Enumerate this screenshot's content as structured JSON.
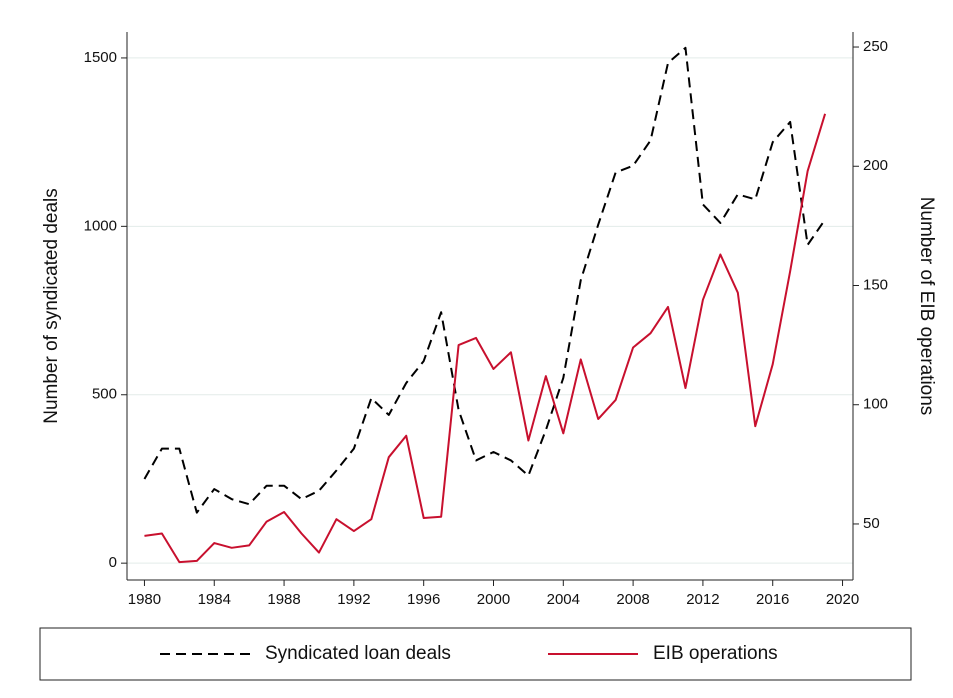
{
  "chart_data": {
    "type": "line",
    "y_label": "Number of syndicated deals",
    "y2_label": "Number of EIB operations",
    "x": [
      1980,
      1981,
      1982,
      1983,
      1984,
      1985,
      1986,
      1987,
      1988,
      1989,
      1990,
      1991,
      1992,
      1993,
      1994,
      1995,
      1996,
      1997,
      1998,
      1999,
      2000,
      2001,
      2002,
      2003,
      2004,
      2005,
      2006,
      2007,
      2008,
      2009,
      2010,
      2011,
      2012,
      2013,
      2014,
      2015,
      2016,
      2017,
      2018,
      2019
    ],
    "series": [
      {
        "name": "Syndicated loan deals",
        "color": "#000000",
        "dash": true,
        "values": [
          250,
          340,
          340,
          150,
          220,
          190,
          175,
          230,
          230,
          190,
          215,
          275,
          340,
          490,
          440,
          535,
          600,
          745,
          455,
          305,
          330,
          305,
          260,
          395,
          550,
          840,
          1005,
          1160,
          1180,
          1255,
          1485,
          1530,
          1065,
          1010,
          1095,
          1080,
          1250,
          1310,
          945,
          1020
        ]
      },
      {
        "name": "EIB operations",
        "color": "#c8102e",
        "axis": "y2",
        "values": [
          45,
          46,
          34,
          34.5,
          42,
          40,
          41,
          51,
          55,
          46,
          38,
          52,
          47,
          52,
          78,
          87,
          52.5,
          53,
          125,
          128,
          115,
          122,
          85,
          112,
          88,
          119,
          94,
          102,
          124,
          130,
          141,
          107,
          144,
          163,
          147,
          91,
          117,
          156,
          198,
          222
        ]
      }
    ],
    "xlim": [
      1979,
      2020.6
    ],
    "xticks": [
      1980,
      1984,
      1988,
      1992,
      1996,
      2000,
      2004,
      2008,
      2012,
      2016,
      2020
    ],
    "ylim": [
      -50,
      1577
    ],
    "yticks": [
      0,
      500,
      1000,
      1500
    ],
    "y2lim": [
      26.5,
      256.3
    ],
    "y2ticks": [
      50,
      100,
      150,
      200,
      250
    ],
    "grid": true,
    "legend": "bottom"
  }
}
